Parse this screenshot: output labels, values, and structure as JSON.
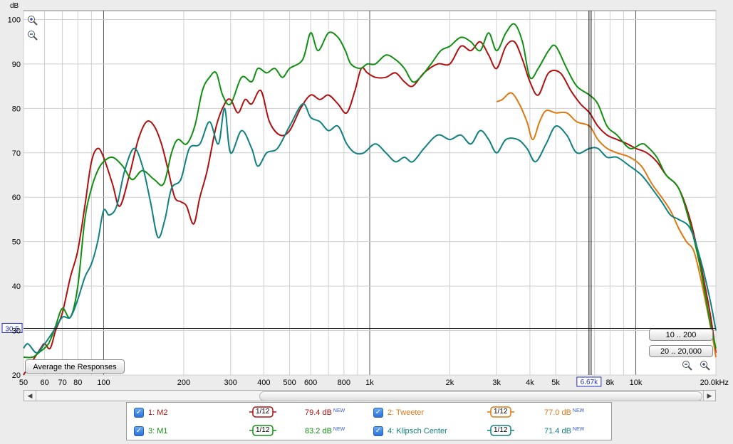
{
  "chart_data": {
    "type": "line",
    "xscale": "log",
    "xlim": [
      50,
      20000
    ],
    "ylim": [
      20,
      102
    ],
    "ylabel": "dB",
    "y_ticks": [
      20,
      30,
      40,
      50,
      60,
      70,
      80,
      90,
      100
    ],
    "x_ticks": [
      {
        "v": 50,
        "t": "50"
      },
      {
        "v": 60,
        "t": "60"
      },
      {
        "v": 70,
        "t": "70"
      },
      {
        "v": 80,
        "t": "80"
      },
      {
        "v": 100,
        "t": "100"
      },
      {
        "v": 200,
        "t": "200"
      },
      {
        "v": 300,
        "t": "300"
      },
      {
        "v": 400,
        "t": "400"
      },
      {
        "v": 500,
        "t": "500"
      },
      {
        "v": 600,
        "t": "600"
      },
      {
        "v": 800,
        "t": "800"
      },
      {
        "v": 1000,
        "t": "1k"
      },
      {
        "v": 2000,
        "t": "2k"
      },
      {
        "v": 3000,
        "t": "3k"
      },
      {
        "v": 4000,
        "t": "4k"
      },
      {
        "v": 5000,
        "t": "5k"
      },
      {
        "v": 8000,
        "t": "8k"
      },
      {
        "v": 10000,
        "t": "10k"
      },
      {
        "v": 20000,
        "t": "20.0kHz"
      }
    ],
    "cursor": {
      "x": 6670,
      "x_label": "6.67k",
      "y": 30.5,
      "y_label": "30.5"
    },
    "series": [
      {
        "name": "1: M2",
        "color": "#b01010",
        "points": [
          [
            50,
            20
          ],
          [
            58,
            26
          ],
          [
            60,
            27
          ],
          [
            63,
            26
          ],
          [
            66,
            30
          ],
          [
            70,
            34
          ],
          [
            75,
            42
          ],
          [
            80,
            48
          ],
          [
            85,
            58
          ],
          [
            90,
            68
          ],
          [
            95,
            71
          ],
          [
            100,
            69
          ],
          [
            108,
            63
          ],
          [
            115,
            58
          ],
          [
            125,
            65
          ],
          [
            135,
            73
          ],
          [
            145,
            77
          ],
          [
            155,
            76
          ],
          [
            165,
            72
          ],
          [
            175,
            66
          ],
          [
            185,
            60
          ],
          [
            195,
            59
          ],
          [
            205,
            58
          ],
          [
            218,
            54
          ],
          [
            230,
            60
          ],
          [
            245,
            66
          ],
          [
            265,
            76
          ],
          [
            285,
            81
          ],
          [
            300,
            82
          ],
          [
            320,
            79
          ],
          [
            340,
            82
          ],
          [
            360,
            81
          ],
          [
            390,
            84
          ],
          [
            420,
            77
          ],
          [
            460,
            74
          ],
          [
            500,
            75
          ],
          [
            550,
            80
          ],
          [
            600,
            83
          ],
          [
            650,
            82
          ],
          [
            700,
            83
          ],
          [
            760,
            81
          ],
          [
            820,
            79
          ],
          [
            880,
            84
          ],
          [
            930,
            89
          ],
          [
            980,
            88
          ],
          [
            1050,
            87
          ],
          [
            1150,
            87
          ],
          [
            1250,
            88
          ],
          [
            1350,
            86
          ],
          [
            1450,
            85
          ],
          [
            1600,
            88
          ],
          [
            1800,
            90
          ],
          [
            2000,
            90
          ],
          [
            2200,
            94
          ],
          [
            2400,
            93
          ],
          [
            2600,
            95
          ],
          [
            2800,
            92
          ],
          [
            3000,
            89
          ],
          [
            3250,
            94
          ],
          [
            3500,
            95
          ],
          [
            3750,
            91
          ],
          [
            4000,
            86
          ],
          [
            4300,
            83
          ],
          [
            4700,
            88
          ],
          [
            5200,
            88
          ],
          [
            5700,
            84
          ],
          [
            6200,
            81
          ],
          [
            6700,
            79
          ],
          [
            7200,
            76
          ],
          [
            7800,
            74
          ],
          [
            8500,
            73
          ],
          [
            9300,
            72
          ],
          [
            10000,
            71
          ],
          [
            11000,
            70
          ],
          [
            12000,
            68
          ],
          [
            13000,
            65
          ],
          [
            14500,
            62
          ],
          [
            16000,
            55
          ],
          [
            17500,
            45
          ],
          [
            19000,
            34
          ],
          [
            20000,
            25
          ]
        ]
      },
      {
        "name": "2: Tweeter",
        "color": "#e07810",
        "points": [
          [
            3000,
            81.5
          ],
          [
            3150,
            82
          ],
          [
            3400,
            83.5
          ],
          [
            3650,
            81
          ],
          [
            3900,
            77
          ],
          [
            4100,
            73
          ],
          [
            4350,
            77
          ],
          [
            4600,
            79.5
          ],
          [
            5000,
            79
          ],
          [
            5500,
            79
          ],
          [
            6000,
            77
          ],
          [
            6700,
            76
          ],
          [
            7200,
            73
          ],
          [
            7800,
            71
          ],
          [
            8500,
            70
          ],
          [
            9500,
            69
          ],
          [
            10500,
            67
          ],
          [
            11500,
            63
          ],
          [
            12500,
            60
          ],
          [
            13500,
            57
          ],
          [
            14500,
            53
          ],
          [
            15500,
            50
          ],
          [
            16500,
            48
          ],
          [
            17500,
            42
          ],
          [
            18500,
            35
          ],
          [
            19500,
            28
          ],
          [
            20000,
            24
          ]
        ]
      },
      {
        "name": "3: M1",
        "color": "#109010",
        "points": [
          [
            50,
            24
          ],
          [
            54,
            24
          ],
          [
            57,
            25
          ],
          [
            62,
            27
          ],
          [
            66,
            31
          ],
          [
            70,
            35
          ],
          [
            75,
            33
          ],
          [
            80,
            40
          ],
          [
            85,
            55
          ],
          [
            90,
            62
          ],
          [
            95,
            66
          ],
          [
            100,
            68
          ],
          [
            108,
            69
          ],
          [
            118,
            67
          ],
          [
            128,
            64
          ],
          [
            140,
            66
          ],
          [
            155,
            64
          ],
          [
            168,
            63
          ],
          [
            180,
            70
          ],
          [
            190,
            73
          ],
          [
            205,
            72
          ],
          [
            220,
            76
          ],
          [
            235,
            84
          ],
          [
            250,
            87
          ],
          [
            265,
            88
          ],
          [
            280,
            83
          ],
          [
            300,
            81
          ],
          [
            330,
            87
          ],
          [
            360,
            86
          ],
          [
            380,
            89
          ],
          [
            410,
            88
          ],
          [
            440,
            89
          ],
          [
            470,
            87
          ],
          [
            500,
            89
          ],
          [
            560,
            91
          ],
          [
            600,
            97
          ],
          [
            640,
            93
          ],
          [
            700,
            97
          ],
          [
            760,
            96
          ],
          [
            810,
            93
          ],
          [
            850,
            90
          ],
          [
            920,
            89
          ],
          [
            980,
            90
          ],
          [
            1050,
            90
          ],
          [
            1150,
            92
          ],
          [
            1250,
            91
          ],
          [
            1350,
            89
          ],
          [
            1450,
            86
          ],
          [
            1550,
            87
          ],
          [
            1700,
            90
          ],
          [
            1850,
            93
          ],
          [
            2000,
            94
          ],
          [
            2200,
            96
          ],
          [
            2400,
            95
          ],
          [
            2600,
            93
          ],
          [
            2800,
            97
          ],
          [
            3000,
            93
          ],
          [
            3250,
            97
          ],
          [
            3500,
            99
          ],
          [
            3750,
            95
          ],
          [
            4000,
            87
          ],
          [
            4300,
            89
          ],
          [
            4700,
            93
          ],
          [
            5000,
            94
          ],
          [
            5500,
            89
          ],
          [
            6000,
            85
          ],
          [
            6700,
            83
          ],
          [
            7200,
            81
          ],
          [
            7800,
            76
          ],
          [
            8500,
            74
          ],
          [
            9500,
            71
          ],
          [
            10500,
            72
          ],
          [
            11000,
            71.5
          ],
          [
            12000,
            69
          ],
          [
            13000,
            65
          ],
          [
            14500,
            62
          ],
          [
            16000,
            54
          ],
          [
            17500,
            44
          ],
          [
            19000,
            32
          ],
          [
            20000,
            26
          ]
        ]
      },
      {
        "name": "4: Klipsch Center",
        "color": "#108080",
        "points": [
          [
            50,
            26
          ],
          [
            52,
            27
          ],
          [
            56,
            25
          ],
          [
            60,
            27
          ],
          [
            65,
            30
          ],
          [
            70,
            33
          ],
          [
            75,
            33
          ],
          [
            80,
            37
          ],
          [
            85,
            42
          ],
          [
            90,
            45
          ],
          [
            95,
            50
          ],
          [
            100,
            57
          ],
          [
            105,
            56
          ],
          [
            112,
            58
          ],
          [
            120,
            66
          ],
          [
            130,
            71
          ],
          [
            140,
            67
          ],
          [
            150,
            59
          ],
          [
            160,
            51
          ],
          [
            170,
            55
          ],
          [
            180,
            62
          ],
          [
            195,
            64
          ],
          [
            210,
            71
          ],
          [
            230,
            72
          ],
          [
            250,
            77
          ],
          [
            270,
            72
          ],
          [
            285,
            80
          ],
          [
            300,
            70
          ],
          [
            330,
            75
          ],
          [
            360,
            71
          ],
          [
            380,
            67
          ],
          [
            410,
            70
          ],
          [
            450,
            71
          ],
          [
            500,
            76
          ],
          [
            560,
            81
          ],
          [
            600,
            78
          ],
          [
            650,
            77
          ],
          [
            700,
            75
          ],
          [
            760,
            76
          ],
          [
            820,
            72
          ],
          [
            880,
            70
          ],
          [
            950,
            70
          ],
          [
            1050,
            72
          ],
          [
            1150,
            70
          ],
          [
            1250,
            68
          ],
          [
            1350,
            69
          ],
          [
            1450,
            68
          ],
          [
            1600,
            71
          ],
          [
            1800,
            74
          ],
          [
            2000,
            73
          ],
          [
            2200,
            74
          ],
          [
            2400,
            72
          ],
          [
            2600,
            75
          ],
          [
            2800,
            73
          ],
          [
            3000,
            70
          ],
          [
            3250,
            73
          ],
          [
            3600,
            73
          ],
          [
            3900,
            71
          ],
          [
            4200,
            68
          ],
          [
            4600,
            72
          ],
          [
            5000,
            76
          ],
          [
            5500,
            74
          ],
          [
            6000,
            70
          ],
          [
            6700,
            71
          ],
          [
            7200,
            71
          ],
          [
            7800,
            69
          ],
          [
            8500,
            69
          ],
          [
            9500,
            67
          ],
          [
            10500,
            65
          ],
          [
            11500,
            62
          ],
          [
            12500,
            59
          ],
          [
            13500,
            56
          ],
          [
            14500,
            55
          ],
          [
            16000,
            53
          ],
          [
            17500,
            46
          ],
          [
            19000,
            37
          ],
          [
            20000,
            30
          ]
        ]
      }
    ]
  },
  "buttons": {
    "average": "Average the Responses",
    "range_low": "10 .. 200",
    "range_full": "20 .. 20,000"
  },
  "legend": [
    {
      "check": "✓",
      "name": "1: M2",
      "smoothing": "1/12",
      "value": "79.4 dB",
      "flag": "NEW",
      "color": "#b01010"
    },
    {
      "check": "✓",
      "name": "2: Tweeter",
      "smoothing": "1/12",
      "value": "77.0 dB",
      "flag": "NEW",
      "color": "#e07810"
    },
    {
      "check": "✓",
      "name": "3: M1",
      "smoothing": "1/12",
      "value": "83.2 dB",
      "flag": "NEW",
      "color": "#109010"
    },
    {
      "check": "✓",
      "name": "4: Klipsch Center",
      "smoothing": "1/12",
      "value": "71.4 dB",
      "flag": "NEW",
      "color": "#108080"
    }
  ],
  "icons": {
    "zoom_in": "zoom-in-icon",
    "zoom_out": "zoom-out-icon"
  }
}
